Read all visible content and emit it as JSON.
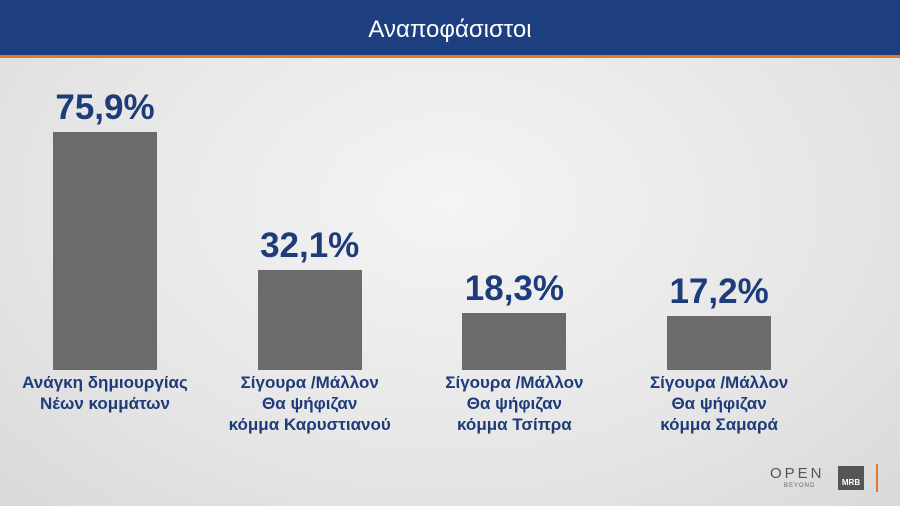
{
  "chart_data": {
    "type": "bar",
    "title": "Αναποφάσιστοι",
    "categories": [
      "Ανάγκη δημιουργίας\nΝέων κομμάτων",
      "Σίγουρα /Μάλλον\nΘα ψήφιζαν\nκόμμα Καρυστιανού",
      "Σίγουρα /Μάλλον\nΘα ψήφιζαν\nκόμμα Τσίπρα",
      "Σίγουρα /Μάλλον\nΘα ψήφιζαν\nκόμμα Σαμαρά"
    ],
    "values": [
      75.9,
      32.1,
      18.3,
      17.2
    ],
    "value_labels": [
      "75,9%",
      "32,1%",
      "18,3%",
      "17,2%"
    ],
    "color": "#6b6b6b"
  },
  "branding": {
    "open": "OPEN",
    "beyond": "BEYOND",
    "mrb": "MRB"
  }
}
